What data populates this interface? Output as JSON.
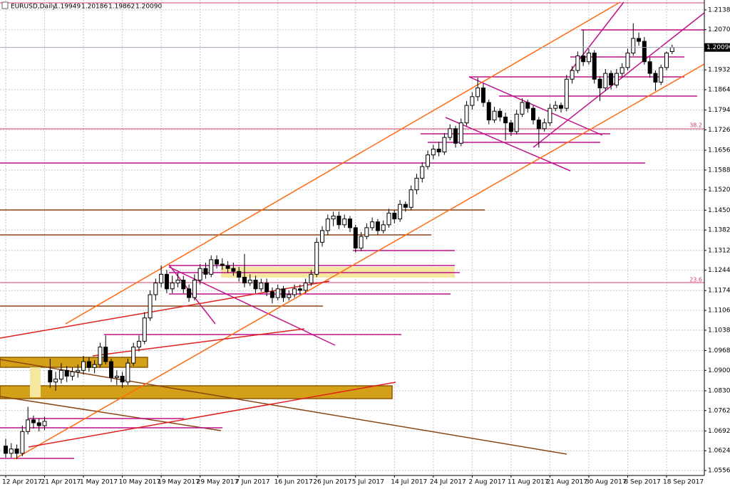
{
  "chart_data": {
    "type": "candlestick",
    "symbol": "EURUSD,Daily",
    "quote": [
      "1.19949",
      "1.20186",
      "1.19862",
      "1.20090"
    ],
    "categories": [
      "12 Apr 2017",
      null,
      null,
      null,
      null,
      null,
      null,
      "21 Apr 2017",
      null,
      null,
      null,
      null,
      null,
      null,
      "1 May 2017",
      null,
      null,
      null,
      null,
      null,
      null,
      "10 May 2017",
      null,
      null,
      null,
      null,
      null,
      null,
      "19 May 2017",
      null,
      null,
      null,
      null,
      null,
      null,
      "29 May 2017",
      null,
      null,
      null,
      null,
      null,
      null,
      "7 Jun 2017",
      null,
      null,
      null,
      null,
      null,
      null,
      "16 Jun 2017",
      null,
      null,
      null,
      null,
      null,
      null,
      "26 Jun 2017",
      null,
      null,
      null,
      null,
      null,
      null,
      "5 Jul 2017",
      null,
      null,
      null,
      null,
      null,
      null,
      "14 Jul 2017",
      null,
      null,
      null,
      null,
      null,
      null,
      "24 Jul 2017",
      null,
      null,
      null,
      null,
      null,
      null,
      "2 Aug 2017",
      null,
      null,
      null,
      null,
      null,
      null,
      "11 Aug 2017",
      null,
      null,
      null,
      null,
      null,
      null,
      "21 Aug 2017",
      null,
      null,
      null,
      null,
      null,
      null,
      "30 Aug 2017",
      null,
      null,
      null,
      null,
      null,
      null,
      "8 Sep 2017",
      null,
      null,
      null,
      null,
      null,
      null,
      "18 Sep 2017",
      null
    ],
    "ohlc": [
      [
        1.064,
        1.0665,
        1.06,
        1.0615
      ],
      [
        1.0615,
        1.065,
        1.06,
        1.063
      ],
      [
        1.063,
        1.0645,
        1.0595,
        1.0615
      ],
      [
        1.0615,
        1.071,
        1.0605,
        1.069
      ],
      [
        1.069,
        1.0775,
        1.068,
        1.073
      ],
      [
        1.073,
        1.0745,
        1.07,
        1.072
      ],
      [
        1.072,
        1.0735,
        1.069,
        1.071
      ],
      [
        1.071,
        1.074,
        1.0695,
        1.0725
      ],
      [
        1.09,
        1.094,
        1.084,
        1.086
      ],
      [
        1.086,
        1.0895,
        1.083,
        1.087
      ],
      [
        1.087,
        1.0925,
        1.0855,
        1.09
      ],
      [
        1.09,
        1.0915,
        1.086,
        1.088
      ],
      [
        1.088,
        1.091,
        1.0865,
        1.0895
      ],
      [
        1.0895,
        1.092,
        1.0875,
        1.09
      ],
      [
        1.09,
        1.095,
        1.0885,
        1.093
      ],
      [
        1.093,
        1.0945,
        1.0895,
        1.091
      ],
      [
        1.091,
        1.0935,
        1.089,
        1.092
      ],
      [
        1.092,
        1.0995,
        1.091,
        1.098
      ],
      [
        1.098,
        1.102,
        1.092,
        1.093
      ],
      [
        1.093,
        1.094,
        1.086,
        1.0875
      ],
      [
        1.0875,
        1.09,
        1.085,
        1.088
      ],
      [
        1.088,
        1.0895,
        1.084,
        1.086
      ],
      [
        1.086,
        1.094,
        1.085,
        1.0925
      ],
      [
        1.0925,
        1.0995,
        1.0915,
        1.098
      ],
      [
        1.098,
        1.102,
        1.0965,
        1.1
      ],
      [
        1.1,
        1.11,
        1.099,
        1.108
      ],
      [
        1.108,
        1.1175,
        1.107,
        1.116
      ],
      [
        1.116,
        1.1215,
        1.114,
        1.12
      ],
      [
        1.12,
        1.126,
        1.1185,
        1.123
      ],
      [
        1.123,
        1.1245,
        1.1165,
        1.118
      ],
      [
        1.118,
        1.1225,
        1.1165,
        1.12
      ],
      [
        1.12,
        1.1235,
        1.1185,
        1.121
      ],
      [
        1.121,
        1.1225,
        1.1165,
        1.118
      ],
      [
        1.118,
        1.1195,
        1.1135,
        1.115
      ],
      [
        1.115,
        1.123,
        1.114,
        1.121
      ],
      [
        1.121,
        1.1265,
        1.1195,
        1.125
      ],
      [
        1.125,
        1.127,
        1.1215,
        1.123
      ],
      [
        1.123,
        1.1295,
        1.122,
        1.128
      ],
      [
        1.128,
        1.1295,
        1.125,
        1.1265
      ],
      [
        1.1265,
        1.1285,
        1.1245,
        1.126
      ],
      [
        1.126,
        1.1275,
        1.1235,
        1.125
      ],
      [
        1.125,
        1.127,
        1.1225,
        1.124
      ],
      [
        1.124,
        1.1255,
        1.1205,
        1.122
      ],
      [
        1.122,
        1.13,
        1.1185,
        1.12
      ],
      [
        1.12,
        1.123,
        1.119,
        1.121
      ],
      [
        1.121,
        1.1225,
        1.1165,
        1.118
      ],
      [
        1.118,
        1.1215,
        1.117,
        1.12
      ],
      [
        1.12,
        1.1215,
        1.1155,
        1.117
      ],
      [
        1.117,
        1.1185,
        1.113,
        1.115
      ],
      [
        1.115,
        1.1195,
        1.114,
        1.118
      ],
      [
        1.118,
        1.119,
        1.1135,
        1.115
      ],
      [
        1.115,
        1.1175,
        1.114,
        1.116
      ],
      [
        1.116,
        1.1195,
        1.115,
        1.118
      ],
      [
        1.118,
        1.1195,
        1.116,
        1.1175
      ],
      [
        1.1175,
        1.1215,
        1.1165,
        1.12
      ],
      [
        1.12,
        1.1245,
        1.119,
        1.123
      ],
      [
        1.123,
        1.1355,
        1.122,
        1.134
      ],
      [
        1.134,
        1.1395,
        1.1325,
        1.138
      ],
      [
        1.138,
        1.1435,
        1.1365,
        1.142
      ],
      [
        1.142,
        1.1445,
        1.1395,
        1.143
      ],
      [
        1.143,
        1.1445,
        1.1385,
        1.14
      ],
      [
        1.14,
        1.1435,
        1.139,
        1.142
      ],
      [
        1.142,
        1.143,
        1.1375,
        1.139
      ],
      [
        1.139,
        1.14,
        1.1305,
        1.132
      ],
      [
        1.132,
        1.1375,
        1.131,
        1.136
      ],
      [
        1.136,
        1.1405,
        1.135,
        1.139
      ],
      [
        1.139,
        1.1425,
        1.138,
        1.141
      ],
      [
        1.141,
        1.142,
        1.1365,
        1.138
      ],
      [
        1.138,
        1.1415,
        1.137,
        1.14
      ],
      [
        1.14,
        1.1455,
        1.139,
        1.144
      ],
      [
        1.144,
        1.145,
        1.1405,
        1.142
      ],
      [
        1.142,
        1.1485,
        1.141,
        1.147
      ],
      [
        1.147,
        1.148,
        1.1445,
        1.146
      ],
      [
        1.146,
        1.1535,
        1.145,
        1.152
      ],
      [
        1.152,
        1.1575,
        1.1505,
        1.156
      ],
      [
        1.156,
        1.1615,
        1.1545,
        1.16
      ],
      [
        1.16,
        1.1655,
        1.159,
        1.164
      ],
      [
        1.164,
        1.1675,
        1.1625,
        1.166
      ],
      [
        1.166,
        1.1685,
        1.1635,
        1.165
      ],
      [
        1.165,
        1.1715,
        1.164,
        1.17
      ],
      [
        1.17,
        1.1745,
        1.169,
        1.173
      ],
      [
        1.173,
        1.174,
        1.1665,
        1.168
      ],
      [
        1.168,
        1.1765,
        1.167,
        1.175
      ],
      [
        1.175,
        1.1825,
        1.174,
        1.181
      ],
      [
        1.181,
        1.1855,
        1.1795,
        1.184
      ],
      [
        1.184,
        1.1905,
        1.1825,
        1.187
      ],
      [
        1.187,
        1.1885,
        1.1805,
        1.182
      ],
      [
        1.182,
        1.183,
        1.1745,
        1.176
      ],
      [
        1.176,
        1.1805,
        1.175,
        1.179
      ],
      [
        1.179,
        1.18,
        1.1755,
        1.177
      ],
      [
        1.177,
        1.1785,
        1.169,
        1.175
      ],
      [
        1.175,
        1.176,
        1.1705,
        1.172
      ],
      [
        1.172,
        1.1795,
        1.171,
        1.178
      ],
      [
        1.178,
        1.1835,
        1.177,
        1.182
      ],
      [
        1.182,
        1.183,
        1.1785,
        1.18
      ],
      [
        1.18,
        1.181,
        1.1745,
        1.176
      ],
      [
        1.176,
        1.177,
        1.1665,
        1.173
      ],
      [
        1.173,
        1.1765,
        1.172,
        1.175
      ],
      [
        1.175,
        1.1815,
        1.174,
        1.18
      ],
      [
        1.18,
        1.1825,
        1.179,
        1.181
      ],
      [
        1.181,
        1.182,
        1.1785,
        1.18
      ],
      [
        1.18,
        1.1915,
        1.179,
        1.19
      ],
      [
        1.19,
        1.1945,
        1.1885,
        1.193
      ],
      [
        1.193,
        1.1995,
        1.192,
        1.198
      ],
      [
        1.198,
        1.207,
        1.1945,
        1.196
      ],
      [
        1.196,
        1.2005,
        1.195,
        1.199
      ],
      [
        1.199,
        1.2,
        1.1885,
        1.19
      ],
      [
        1.19,
        1.191,
        1.1825,
        1.187
      ],
      [
        1.187,
        1.1935,
        1.186,
        1.192
      ],
      [
        1.192,
        1.193,
        1.1865,
        1.188
      ],
      [
        1.188,
        1.1935,
        1.187,
        1.192
      ],
      [
        1.192,
        1.1955,
        1.1905,
        1.194
      ],
      [
        1.194,
        1.2005,
        1.193,
        1.199
      ],
      [
        1.199,
        1.2092,
        1.198,
        1.204
      ],
      [
        1.204,
        1.206,
        1.2015,
        1.203
      ],
      [
        1.203,
        1.2045,
        1.195,
        1.196
      ],
      [
        1.196,
        1.1975,
        1.1905,
        1.192
      ],
      [
        1.192,
        1.193,
        1.186,
        1.189
      ],
      [
        1.189,
        1.195,
        1.188,
        1.194
      ],
      [
        1.194,
        1.1995,
        1.193,
        1.199
      ],
      [
        1.19949,
        1.20186,
        1.19862,
        1.2009
      ]
    ],
    "ylim": [
      1.0539,
      1.2172
    ],
    "yticks": [
      {
        "value": 1.2138,
        "label": "1.21380"
      },
      {
        "value": 1.207,
        "label": "1.20700"
      },
      {
        "value": 1.1932,
        "label": "1.19320"
      },
      {
        "value": 1.1864,
        "label": "1.18640"
      },
      {
        "value": 1.1794,
        "label": "1.17940"
      },
      {
        "value": 1.1726,
        "label": "1.17260"
      },
      {
        "value": 1.1656,
        "label": "1.16560"
      },
      {
        "value": 1.1588,
        "label": "1.15880"
      },
      {
        "value": 1.152,
        "label": "1.15200"
      },
      {
        "value": 1.145,
        "label": "1.14500"
      },
      {
        "value": 1.1382,
        "label": "1.13820"
      },
      {
        "value": 1.1312,
        "label": "1.13120"
      },
      {
        "value": 1.1244,
        "label": "1.12440"
      },
      {
        "value": 1.1174,
        "label": "1.11740"
      },
      {
        "value": 1.1106,
        "label": "1.11060"
      },
      {
        "value": 1.1038,
        "label": "1.10380"
      },
      {
        "value": 1.0968,
        "label": "1.09680"
      },
      {
        "value": 1.09,
        "label": "1.09000"
      },
      {
        "value": 1.083,
        "label": "1.08300"
      },
      {
        "value": 1.0762,
        "label": "1.07620"
      },
      {
        "value": 1.0692,
        "label": "1.06920"
      },
      {
        "value": 1.0624,
        "label": "1.06240"
      },
      {
        "value": 1.0556,
        "label": "1.05560"
      }
    ],
    "last_price": {
      "value": 1.2009,
      "label": "1.20090"
    },
    "annotations": [
      "38.2",
      "23.6"
    ],
    "grid": true
  }
}
